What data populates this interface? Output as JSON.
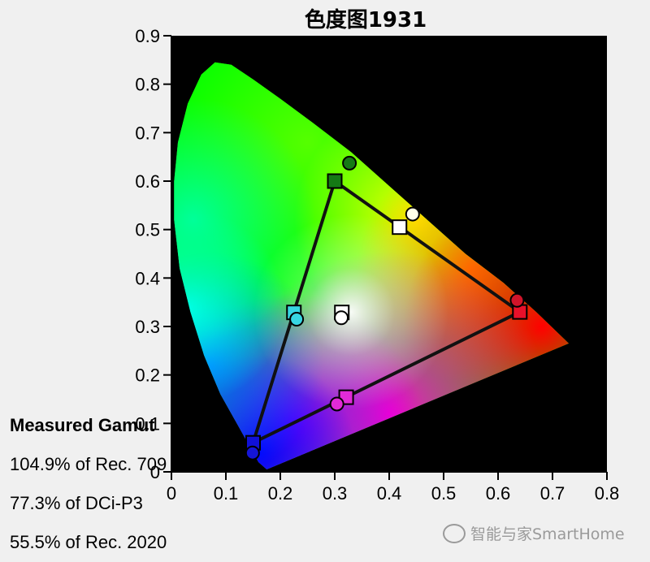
{
  "chart_data": {
    "type": "scatter",
    "title": "色度图1931",
    "xlim": [
      0,
      0.8
    ],
    "ylim": [
      0,
      0.9
    ],
    "x_ticks": [
      "0",
      "0.1",
      "0.2",
      "0.3",
      "0.4",
      "0.5",
      "0.6",
      "0.7",
      "0.8"
    ],
    "y_ticks": [
      "0",
      "0.1",
      "0.2",
      "0.3",
      "0.4",
      "0.5",
      "0.6",
      "0.7",
      "0.8",
      "0.9"
    ],
    "reference_gamut_squares": [
      {
        "x": 0.64,
        "y": 0.33,
        "color": "#e8102a"
      },
      {
        "x": 0.3,
        "y": 0.6,
        "color": "#157a15"
      },
      {
        "x": 0.15,
        "y": 0.06,
        "color": "#1010d8"
      },
      {
        "x": 0.225,
        "y": 0.329,
        "color": "#37d6e3"
      },
      {
        "x": 0.321,
        "y": 0.154,
        "color": "#e22ad7"
      },
      {
        "x": 0.419,
        "y": 0.505,
        "color": "#ffffff"
      },
      {
        "x": 0.313,
        "y": 0.329,
        "color": "#ffffff"
      }
    ],
    "measured_circles": [
      {
        "x": 0.635,
        "y": 0.354,
        "color": "#d0142a"
      },
      {
        "x": 0.327,
        "y": 0.637,
        "color": "#157a15"
      },
      {
        "x": 0.149,
        "y": 0.039,
        "color": "#1515d8"
      },
      {
        "x": 0.23,
        "y": 0.315,
        "color": "#37d6e3"
      },
      {
        "x": 0.304,
        "y": 0.14,
        "color": "#e22ad7"
      },
      {
        "x": 0.443,
        "y": 0.532,
        "color": "#ffffe8"
      },
      {
        "x": 0.312,
        "y": 0.318,
        "color": "#ffffff"
      }
    ],
    "triangle": [
      [
        0.64,
        0.33
      ],
      [
        0.3,
        0.6
      ],
      [
        0.15,
        0.06
      ]
    ],
    "grid": false
  },
  "gamut": {
    "heading": "Measured Gamut",
    "lines": [
      "104.9% of Rec. 709",
      "77.3% of DCi-P3",
      "55.5% of Rec. 2020"
    ]
  },
  "watermark": "智能与家SmartHome"
}
